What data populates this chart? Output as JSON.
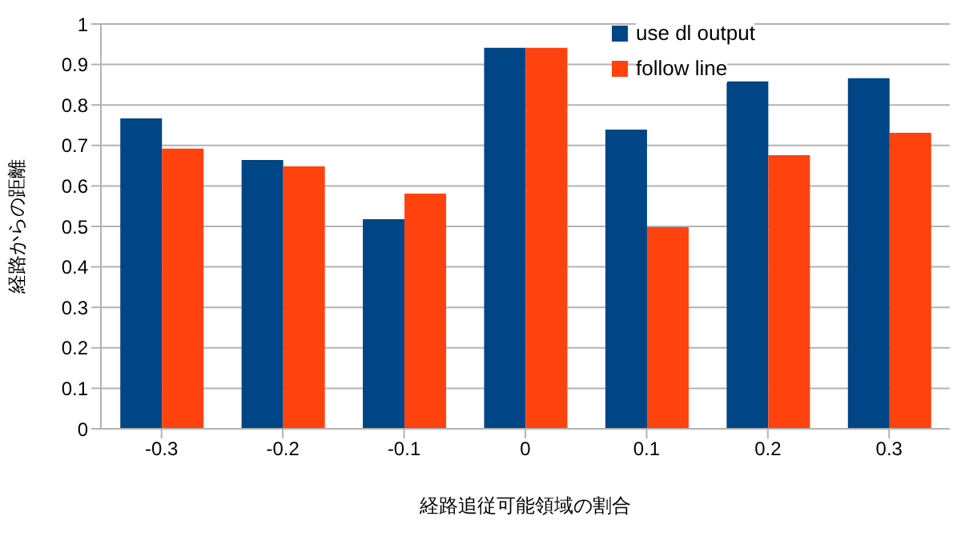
{
  "chart_data": {
    "type": "bar",
    "xlabel": "経路追従可能領域の割合",
    "ylabel": "経路からの距離",
    "categories": [
      "-0.3",
      "-0.2",
      "-0.1",
      "0",
      "0.1",
      "0.2",
      "0.3"
    ],
    "series": [
      {
        "name": "use dl output",
        "color": "#004586",
        "values": [
          0.767,
          0.664,
          0.518,
          0.941,
          0.739,
          0.858,
          0.866
        ]
      },
      {
        "name": "follow line",
        "color": "#ff420e",
        "values": [
          0.692,
          0.648,
          0.581,
          0.941,
          0.498,
          0.676,
          0.731
        ]
      }
    ],
    "ylim": [
      0,
      1
    ],
    "yticks": [
      0,
      0.1,
      0.2,
      0.3,
      0.4,
      0.5,
      0.6,
      0.7,
      0.8,
      0.9,
      1
    ],
    "grid": "y",
    "legend": "top right"
  }
}
